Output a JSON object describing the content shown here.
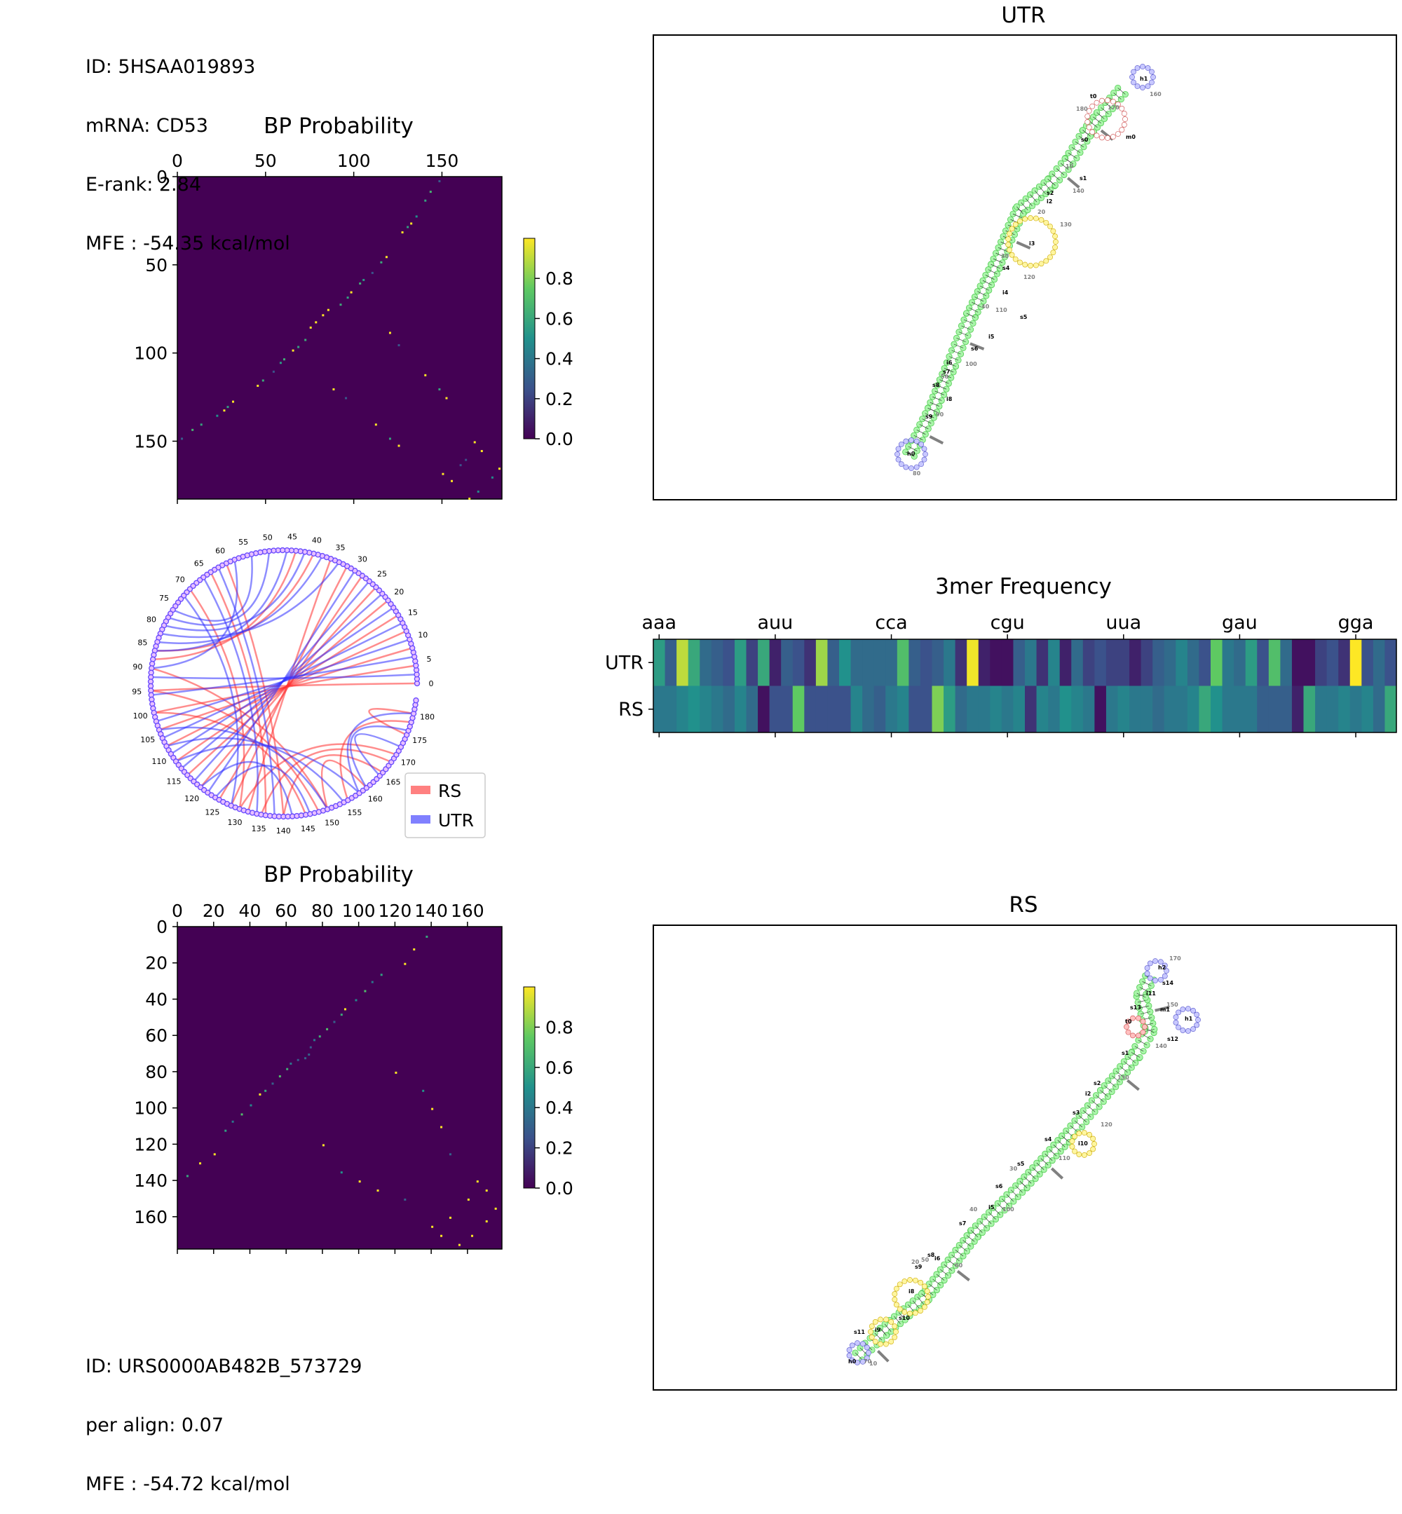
{
  "utr_info": {
    "id": "ID: 5HSAA019893",
    "mrna": "mRNA: CD53",
    "erank": "E-rank: 2.84",
    "mfe": "MFE : -54.35 kcal/mol"
  },
  "rs_info": {
    "id": "ID: URS0000AB482B_573729",
    "per_align": "per align: 0.07",
    "mfe": "MFE : -54.72 kcal/mol"
  },
  "chart_data": [
    {
      "type": "heatmap",
      "title": "BP Probability",
      "size": 184,
      "xticks": [
        0,
        50,
        100,
        150
      ],
      "yticks": [
        0,
        50,
        100,
        150
      ],
      "colorbar_ticks": [
        "0.0",
        "0.2",
        "0.4",
        "0.6",
        "0.8"
      ],
      "colormap": "viridis",
      "pairs": [
        [
          2,
          148
        ],
        [
          8,
          143
        ],
        [
          13,
          140
        ],
        [
          22,
          135
        ],
        [
          26,
          132
        ],
        [
          28,
          130
        ],
        [
          31,
          127
        ],
        [
          45,
          118
        ],
        [
          48,
          115
        ],
        [
          54,
          110
        ],
        [
          58,
          105
        ],
        [
          60,
          103
        ],
        [
          65,
          98
        ],
        [
          68,
          96
        ],
        [
          72,
          92
        ],
        [
          75,
          85
        ],
        [
          78,
          82
        ],
        [
          88,
          120
        ],
        [
          95,
          125
        ],
        [
          112,
          140
        ],
        [
          120,
          148
        ],
        [
          125,
          152
        ],
        [
          150,
          168
        ],
        [
          155,
          172
        ],
        [
          160,
          163
        ],
        [
          165,
          182
        ],
        [
          170,
          178
        ]
      ]
    },
    {
      "type": "arc",
      "legend": [
        "RS",
        "UTR"
      ],
      "legend_colors": [
        "#ff8080",
        "#8080ff"
      ],
      "positions": 184,
      "tick_labels": [
        "0",
        "5",
        "10",
        "15",
        "20",
        "25",
        "30",
        "35",
        "40",
        "45",
        "50",
        "55",
        "60",
        "65",
        "70",
        "75",
        "80",
        "85",
        "90",
        "95",
        "100",
        "105",
        "110",
        "115",
        "120",
        "125",
        "130",
        "135",
        "140",
        "145",
        "150",
        "155",
        "160",
        "165",
        "170",
        "175",
        "180"
      ]
    },
    {
      "type": "heatmap",
      "title": "3mer Frequency",
      "columns": 64,
      "xtick_labels": [
        "aaa",
        "auu",
        "cca",
        "cgu",
        "uua",
        "gau",
        "gga"
      ],
      "rows": [
        "UTR",
        "RS"
      ],
      "values": [
        [
          0.55,
          0.3,
          0.9,
          0.6,
          0.35,
          0.3,
          0.25,
          0.55,
          0.2,
          0.6,
          0.1,
          0.3,
          0.25,
          0.15,
          0.85,
          0.3,
          0.5,
          0.35,
          0.35,
          0.35,
          0.35,
          0.7,
          0.3,
          0.25,
          0.3,
          0.4,
          0.15,
          0.98,
          0.1,
          0.05,
          0.05,
          0.3,
          0.4,
          0.15,
          0.45,
          0.1,
          0.35,
          0.2,
          0.25,
          0.2,
          0.2,
          0.1,
          0.2,
          0.3,
          0.35,
          0.45,
          0.35,
          0.25,
          0.75,
          0.4,
          0.35,
          0.55,
          0.25,
          0.7,
          0.35,
          0.05,
          0.05,
          0.2,
          0.25,
          0.15,
          1.0,
          0.25,
          0.35,
          0.25
        ],
        [
          0.4,
          0.4,
          0.45,
          0.5,
          0.45,
          0.4,
          0.35,
          0.45,
          0.35,
          0.05,
          0.25,
          0.25,
          0.75,
          0.25,
          0.25,
          0.25,
          0.25,
          0.45,
          0.35,
          0.3,
          0.4,
          0.45,
          0.25,
          0.25,
          0.8,
          0.55,
          0.35,
          0.4,
          0.4,
          0.45,
          0.4,
          0.45,
          0.15,
          0.45,
          0.4,
          0.5,
          0.45,
          0.4,
          0.05,
          0.4,
          0.45,
          0.4,
          0.4,
          0.35,
          0.4,
          0.4,
          0.45,
          0.6,
          0.5,
          0.4,
          0.4,
          0.4,
          0.3,
          0.3,
          0.3,
          0.1,
          0.6,
          0.4,
          0.4,
          0.45,
          0.4,
          0.45,
          0.35,
          0.6
        ]
      ]
    },
    {
      "type": "heatmap",
      "title": "BP Probability",
      "size": 179,
      "xticks": [
        0,
        20,
        40,
        60,
        80,
        100,
        120,
        140,
        160
      ],
      "yticks": [
        0,
        20,
        40,
        60,
        80,
        100,
        120,
        140,
        160
      ],
      "colorbar_ticks": [
        "0.0",
        "0.2",
        "0.4",
        "0.6",
        "0.8"
      ],
      "colormap": "viridis",
      "pairs": [
        [
          5,
          137
        ],
        [
          12,
          130
        ],
        [
          20,
          125
        ],
        [
          26,
          112
        ],
        [
          30,
          107
        ],
        [
          35,
          103
        ],
        [
          40,
          98
        ],
        [
          45,
          92
        ],
        [
          48,
          90
        ],
        [
          52,
          86
        ],
        [
          56,
          82
        ],
        [
          60,
          78
        ],
        [
          62,
          75
        ],
        [
          66,
          73
        ],
        [
          70,
          72
        ],
        [
          80,
          120
        ],
        [
          90,
          135
        ],
        [
          100,
          140
        ],
        [
          110,
          145
        ],
        [
          125,
          150
        ],
        [
          140,
          165
        ],
        [
          145,
          170
        ],
        [
          150,
          160
        ],
        [
          155,
          175
        ],
        [
          162,
          170
        ]
      ]
    }
  ],
  "structures": [
    {
      "title": "UTR",
      "labels": [
        "t0",
        "h1",
        "m0",
        "s0",
        "s1",
        "s2",
        "s4",
        "s5",
        "s6",
        "s7",
        "s8",
        "s9",
        "i0",
        "i2",
        "i3",
        "i4",
        "i5",
        "i6",
        "i8",
        "h0",
        "10",
        "20",
        "30",
        "40",
        "50",
        "60",
        "70",
        "80",
        "90",
        "100",
        "110",
        "120",
        "130",
        "140",
        "150",
        "160",
        "170",
        "180"
      ]
    },
    {
      "title": "RS",
      "labels": [
        "h2",
        "s14",
        "i11",
        "s13",
        "m1",
        "t0",
        "h1",
        "s12",
        "s1",
        "s2",
        "s3",
        "s4",
        "s5",
        "s6",
        "s7",
        "s8",
        "s9",
        "s10",
        "s11",
        "i2",
        "i5",
        "i6",
        "i8",
        "i9",
        "i10",
        "h0",
        "10",
        "20",
        "30",
        "40",
        "50",
        "60",
        "70",
        "100",
        "110",
        "120",
        "130",
        "140",
        "150",
        "170"
      ]
    }
  ]
}
